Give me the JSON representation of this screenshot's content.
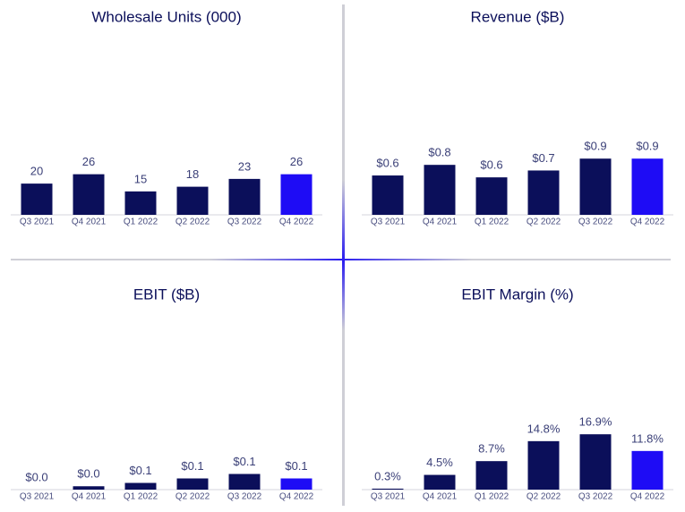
{
  "chart_data": [
    {
      "type": "bar",
      "title": "Wholesale Units (000)",
      "categories": [
        "Q3 2021",
        "Q4 2021",
        "Q1 2022",
        "Q2 2022",
        "Q3 2022",
        "Q4 2022"
      ],
      "values": [
        20,
        26,
        15,
        18,
        23,
        26
      ],
      "colors": [
        "#0b0f5a",
        "#0b0f5a",
        "#0b0f5a",
        "#0b0f5a",
        "#0b0f5a",
        "#1e0cf5"
      ],
      "ylim": [
        0,
        86
      ]
    },
    {
      "type": "bar",
      "title": "Revenue ($B)",
      "categories": [
        "Q3 2021",
        "Q4 2021",
        "Q1 2022",
        "Q2 2022",
        "Q3 2022",
        "Q4 2022"
      ],
      "values": [
        0.63,
        0.8,
        0.6,
        0.71,
        0.9,
        0.9
      ],
      "value_labels": [
        "$0.6",
        "$0.8",
        "$0.6",
        "$0.7",
        "$0.9",
        "$0.9"
      ],
      "colors": [
        "#0b0f5a",
        "#0b0f5a",
        "#0b0f5a",
        "#0b0f5a",
        "#0b0f5a",
        "#1e0cf5"
      ],
      "ylim": [
        0,
        2.15
      ]
    },
    {
      "type": "bar",
      "title": "EBIT ($B)",
      "categories": [
        "Q3 2021",
        "Q4 2021",
        "Q1 2022",
        "Q2 2022",
        "Q3 2022",
        "Q4 2022"
      ],
      "values": [
        0.0,
        0.03,
        0.06,
        0.1,
        0.14,
        0.1
      ],
      "value_labels": [
        "$0.0",
        "$0.0",
        "$0.1",
        "$0.1",
        "$0.1",
        "$0.1"
      ],
      "colors": [
        "#0b0f5a",
        "#0b0f5a",
        "#0b0f5a",
        "#0b0f5a",
        "#0b0f5a",
        "#1e0cf5"
      ],
      "ylim": [
        0,
        1.2
      ]
    },
    {
      "type": "bar",
      "title": "EBIT Margin (%)",
      "categories": [
        "Q3 2021",
        "Q4 2021",
        "Q1 2022",
        "Q2 2022",
        "Q3 2022",
        "Q4 2022"
      ],
      "values": [
        0.3,
        4.5,
        8.7,
        14.8,
        16.9,
        11.8
      ],
      "value_labels": [
        "0.3%",
        "4.5%",
        "8.7%",
        "14.8%",
        "16.9%",
        "11.8%"
      ],
      "colors": [
        "#0b0f5a",
        "#0b0f5a",
        "#0b0f5a",
        "#0b0f5a",
        "#0b0f5a",
        "#1e0cf5"
      ],
      "ylim": [
        0,
        41
      ]
    }
  ]
}
